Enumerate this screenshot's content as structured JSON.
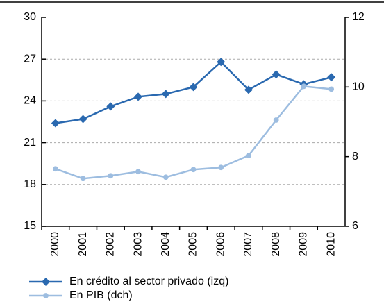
{
  "chart_data": {
    "type": "line",
    "categories": [
      "2000",
      "2001",
      "2002",
      "2003",
      "2004",
      "2005",
      "2006",
      "2007",
      "2008",
      "2009",
      "2010"
    ],
    "series": [
      {
        "name": "En crédito al sector privado (izq)",
        "color": "#2a69b0",
        "marker": "diamond",
        "values": [
          22.4,
          22.7,
          23.6,
          24.3,
          24.5,
          25.0,
          26.8,
          24.8,
          25.9,
          25.2,
          25.7
        ]
      },
      {
        "name": "En PIB (dch)",
        "color": "#9dbde0",
        "marker": "circle",
        "axis": "y2",
        "values": [
          7.65,
          7.37,
          7.45,
          7.57,
          7.41,
          7.63,
          7.69,
          8.03,
          9.05,
          10.02,
          9.94
        ]
      }
    ],
    "ylim": [
      15,
      30
    ],
    "yticks": [
      15,
      18,
      21,
      24,
      27,
      30
    ],
    "y2lim": [
      6,
      12
    ],
    "y2ticks": [
      6,
      8,
      10,
      12
    ],
    "grid": true
  }
}
